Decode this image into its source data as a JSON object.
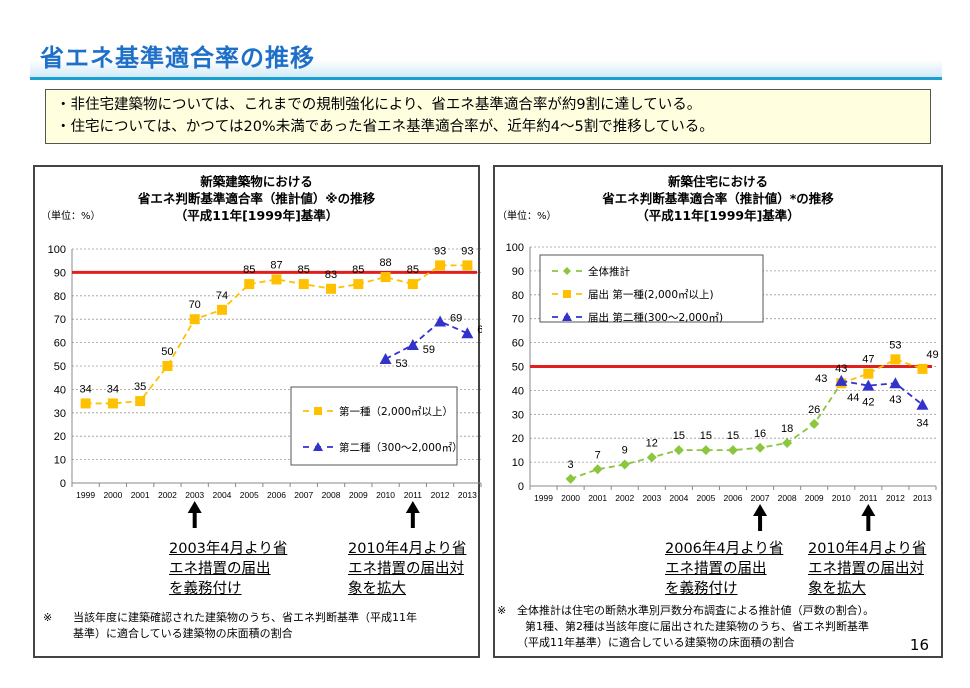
{
  "page": {
    "title": "省エネ基準適合率の推移",
    "page_number": "16",
    "summary": [
      "非住宅建築物については、これまでの規制強化により、省エネ基準適合率が約9割に達している。",
      "住宅については、かつては20%未満であった省エネ基準適合率が、近年約4～5割で推移している。"
    ]
  },
  "colors": {
    "title": "#1e6fc8",
    "reference_line": "#e02020",
    "series_orange": "#ffc000",
    "series_blue": "#3333cc",
    "series_green": "#8cc63f"
  },
  "left": {
    "title_lines": [
      "新築建築物における",
      "省エネ判断基準適合率（推計値）※の推移",
      "（平成11年[1999年]基準）"
    ],
    "unit": "（単位：%）",
    "annotations": [
      {
        "year": "2003",
        "lines": [
          "2003年4月より省",
          "エネ措置の届出",
          "を義務付け"
        ]
      },
      {
        "year": "2011",
        "lines": [
          "2010年4月より省",
          "エネ措置の届出対",
          "象を拡大"
        ]
      }
    ],
    "note_mark": "※",
    "note_lines": [
      "当該年度に建築確認された建築物のうち、省エネ判断基準（平成11年",
      "基準）に適合している建築物の床面積の割合"
    ]
  },
  "right": {
    "title_lines": [
      "新築住宅における",
      "省エネ判断基準適合率（推計値）*の推移",
      "（平成11年[1999年]基準）"
    ],
    "unit": "（単位：%）",
    "annotations": [
      {
        "year": "2007",
        "lines": [
          "2006年4月より省",
          "エネ措置の届出",
          "を義務付け"
        ]
      },
      {
        "year": "2011",
        "lines": [
          "2010年4月より省",
          "エネ措置の届出対",
          "象を拡大"
        ]
      }
    ],
    "note_mark": "※",
    "note_lines": [
      "全体推計は住宅の断熱水準別戸数分布調査による推計値（戸数の割合）。",
      "第1種、第2種は当該年度に届出された建築物のうち、省エネ判断基準",
      "（平成11年基準）に適合している建築物の床面積の割合"
    ]
  },
  "chart_data": [
    {
      "type": "line",
      "title": "新築建築物における省エネ判断基準適合率（推計値）※の推移",
      "ylabel": "（単位：%）",
      "xlabel": "",
      "ylim": [
        0,
        100
      ],
      "yticks": [
        0,
        10,
        20,
        30,
        40,
        50,
        60,
        70,
        80,
        90,
        100
      ],
      "grid": true,
      "reference_line": 90,
      "legend_position": "right-middle",
      "x": [
        "1999",
        "2000",
        "2001",
        "2002",
        "2003",
        "2004",
        "2005",
        "2006",
        "2007",
        "2008",
        "2009",
        "2010",
        "2011",
        "2012",
        "2013"
      ],
      "series": [
        {
          "name": "第一種（2,000㎡以上）",
          "marker": "square",
          "color": "#ffc000",
          "values": [
            34,
            34,
            35,
            50,
            70,
            74,
            85,
            87,
            85,
            83,
            85,
            88,
            85,
            93,
            93
          ]
        },
        {
          "name": "第二種（300～2,000㎡）",
          "marker": "triangle",
          "color": "#3333cc",
          "values": [
            null,
            null,
            null,
            null,
            null,
            null,
            null,
            null,
            null,
            null,
            null,
            53,
            59,
            69,
            64
          ]
        }
      ]
    },
    {
      "type": "line",
      "title": "新築住宅における省エネ判断基準適合率（推計値）*の推移",
      "ylabel": "（単位：%）",
      "xlabel": "",
      "ylim": [
        0,
        100
      ],
      "yticks": [
        0,
        10,
        20,
        30,
        40,
        50,
        60,
        70,
        80,
        90,
        100
      ],
      "grid": true,
      "reference_line": 50,
      "legend_position": "top-left",
      "x": [
        "1999",
        "2000",
        "2001",
        "2002",
        "2003",
        "2004",
        "2005",
        "2006",
        "2007",
        "2008",
        "2009",
        "2010",
        "2011",
        "2012",
        "2013"
      ],
      "series": [
        {
          "name": "全体推計",
          "marker": "diamond",
          "color": "#8cc63f",
          "values": [
            null,
            3,
            7,
            9,
            12,
            15,
            15,
            15,
            16,
            18,
            26,
            43,
            null,
            null,
            null
          ]
        },
        {
          "name": "届出 第一種(2,000㎡以上)",
          "marker": "square",
          "color": "#ffc000",
          "values": [
            null,
            null,
            null,
            null,
            null,
            null,
            null,
            null,
            null,
            null,
            null,
            43,
            47,
            53,
            49
          ]
        },
        {
          "name": "届出 第二種(300～2,000㎡)",
          "marker": "triangle",
          "color": "#3333cc",
          "values": [
            null,
            null,
            null,
            null,
            null,
            null,
            null,
            null,
            null,
            null,
            null,
            44,
            42,
            43,
            34
          ]
        }
      ]
    }
  ]
}
